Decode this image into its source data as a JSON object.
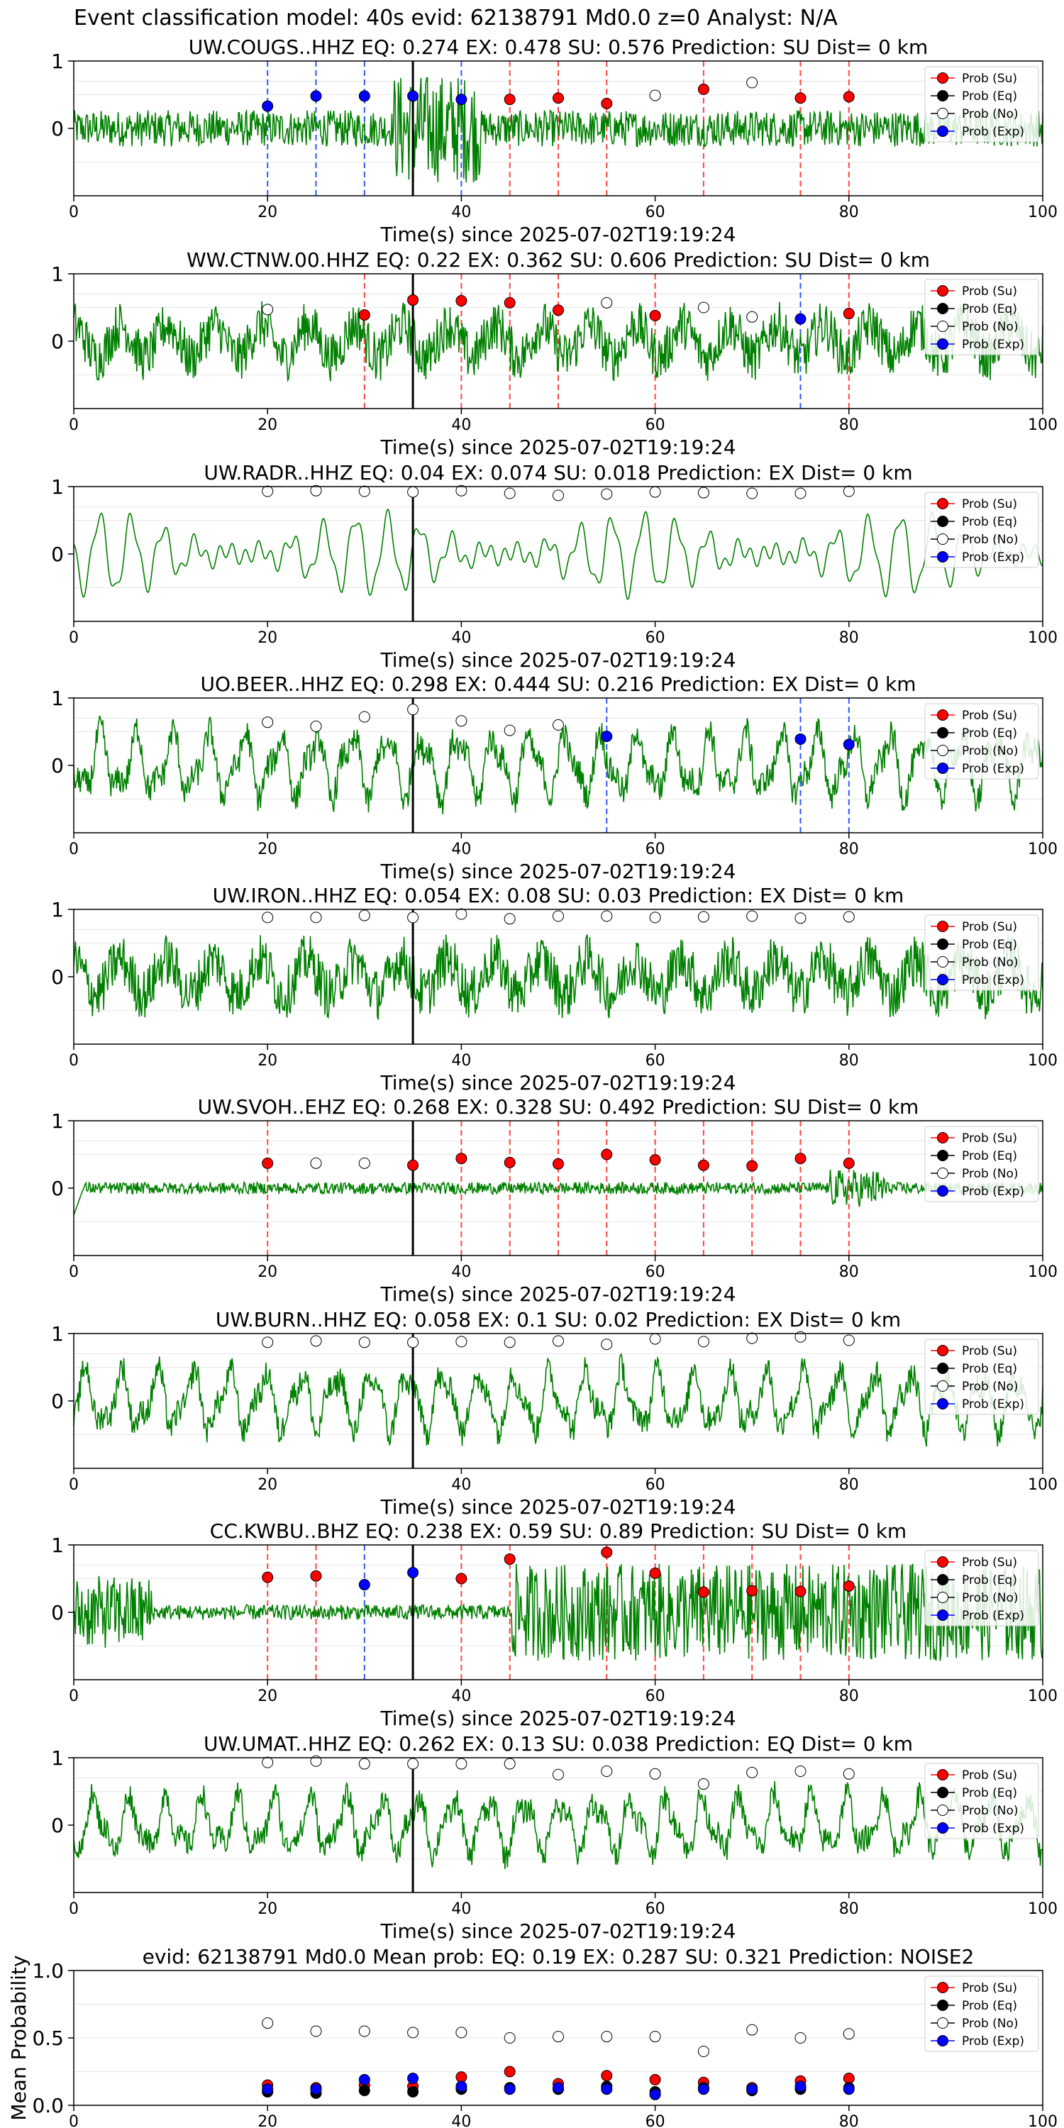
{
  "figure": {
    "suptitle": "Event classification model: 40s evid: 62138791 Md0.0 z=0 Analyst: N/A"
  },
  "legend_labels": [
    "Prob (Su)",
    "Prob (Eq)",
    "Prob (No)",
    "Prob (Exp)"
  ],
  "colors": {
    "trace": "#008000",
    "su": "#ff0000",
    "eq": "#000000",
    "no": "#ffffff",
    "exp": "#0000ff",
    "su_line": "#ff4444",
    "exp_line": "#3355ff",
    "pick_line": "#000000"
  },
  "xlabel": "Time(s) since 2025-07-02T19:19:24",
  "x_ticks": [
    "0",
    "20",
    "40",
    "60",
    "80",
    "100"
  ],
  "chart_data": [
    {
      "type": "line",
      "title": "UW.COUGS..HHZ   EQ: 0.274  EX: 0.478  SU: 0.576   Prediction: SU    Dist= 0 km",
      "xlim": [
        0,
        100
      ],
      "ylim": [
        -1,
        1
      ],
      "y_ticks": [
        "1",
        "0"
      ],
      "p_pick": 35,
      "noise_style": "high",
      "waveform_amplitude": 0.9,
      "window_times": [
        20,
        25,
        30,
        35,
        40,
        45,
        50,
        55,
        60,
        65,
        70,
        75,
        80
      ],
      "window_class": [
        "exp",
        "exp",
        "exp",
        "exp",
        "exp",
        "su",
        "su",
        "su",
        "no",
        "su",
        "no",
        "su",
        "su"
      ],
      "window_prob": [
        0.33,
        0.48,
        0.48,
        0.48,
        0.43,
        0.43,
        0.45,
        0.37,
        0.49,
        0.58,
        0.68,
        0.45,
        0.47
      ]
    },
    {
      "type": "line",
      "title": "WW.CTNW.00.HHZ   EQ: 0.22  EX: 0.362  SU: 0.606   Prediction: SU    Dist= 0 km",
      "xlim": [
        0,
        100
      ],
      "ylim": [
        -1,
        1
      ],
      "y_ticks": [
        "1",
        "0"
      ],
      "p_pick": 35,
      "noise_style": "mixed",
      "waveform_amplitude": 0.8,
      "window_times": [
        20,
        30,
        35,
        40,
        45,
        50,
        55,
        60,
        65,
        70,
        75,
        80
      ],
      "window_class": [
        "no",
        "su",
        "su",
        "su",
        "su",
        "su",
        "no",
        "su",
        "no",
        "no",
        "exp",
        "su"
      ],
      "window_prob": [
        0.47,
        0.39,
        0.61,
        0.6,
        0.57,
        0.46,
        0.57,
        0.38,
        0.5,
        0.36,
        0.33,
        0.41
      ]
    },
    {
      "type": "line",
      "title": "UW.RADR..HHZ   EQ: 0.04  EX: 0.074  SU: 0.018   Prediction: EX    Dist= 0 km",
      "xlim": [
        0,
        100
      ],
      "ylim": [
        -1,
        1
      ],
      "y_ticks": [
        "1",
        "0"
      ],
      "p_pick": 35,
      "noise_style": "smooth",
      "waveform_amplitude": 0.8,
      "window_times": [
        20,
        25,
        30,
        35,
        40,
        45,
        50,
        55,
        60,
        65,
        70,
        75,
        80
      ],
      "window_class": [
        "no",
        "no",
        "no",
        "no",
        "no",
        "no",
        "no",
        "no",
        "no",
        "no",
        "no",
        "no",
        "no"
      ],
      "window_prob": [
        0.93,
        0.94,
        0.93,
        0.92,
        0.94,
        0.9,
        0.87,
        0.89,
        0.92,
        0.91,
        0.9,
        0.9,
        0.93
      ]
    },
    {
      "type": "line",
      "title": "UO.BEER..HHZ   EQ: 0.298  EX: 0.444  SU: 0.216   Prediction: EX    Dist= 0 km",
      "xlim": [
        0,
        100
      ],
      "ylim": [
        -1,
        1
      ],
      "y_ticks": [
        "1",
        "0"
      ],
      "p_pick": 35,
      "noise_style": "lowfreq",
      "waveform_amplitude": 0.85,
      "window_times": [
        20,
        25,
        30,
        35,
        40,
        45,
        50,
        55,
        75,
        80
      ],
      "window_class": [
        "no",
        "no",
        "no",
        "no",
        "no",
        "no",
        "no",
        "exp",
        "exp",
        "exp"
      ],
      "window_prob": [
        0.64,
        0.58,
        0.72,
        0.83,
        0.66,
        0.52,
        0.6,
        0.43,
        0.39,
        0.31
      ]
    },
    {
      "type": "line",
      "title": "UW.IRON..HHZ   EQ: 0.054  EX: 0.08  SU: 0.03   Prediction: EX    Dist= 0 km",
      "xlim": [
        0,
        100
      ],
      "ylim": [
        -1,
        1
      ],
      "y_ticks": [
        "1",
        "0"
      ],
      "p_pick": 35,
      "noise_style": "mixed",
      "waveform_amplitude": 0.85,
      "window_times": [
        20,
        25,
        30,
        35,
        40,
        45,
        50,
        55,
        60,
        65,
        70,
        75,
        80
      ],
      "window_class": [
        "no",
        "no",
        "no",
        "no",
        "no",
        "no",
        "no",
        "no",
        "no",
        "no",
        "no",
        "no",
        "no"
      ],
      "window_prob": [
        0.88,
        0.88,
        0.91,
        0.88,
        0.93,
        0.86,
        0.9,
        0.9,
        0.88,
        0.89,
        0.9,
        0.87,
        0.89
      ]
    },
    {
      "type": "line",
      "title": "UW.SVOH..EHZ   EQ: 0.268  EX: 0.328  SU: 0.492   Prediction: SU    Dist= 0 km",
      "xlim": [
        0,
        100
      ],
      "ylim": [
        -1,
        1
      ],
      "y_ticks": [
        "1",
        "0"
      ],
      "p_pick": 35,
      "noise_style": "quiet",
      "waveform_amplitude": 0.5,
      "window_times": [
        20,
        25,
        30,
        35,
        40,
        45,
        50,
        55,
        60,
        65,
        70,
        75,
        80
      ],
      "window_class": [
        "su",
        "no",
        "no",
        "su",
        "su",
        "su",
        "su",
        "su",
        "su",
        "su",
        "su",
        "su",
        "su"
      ],
      "window_prob": [
        0.37,
        0.37,
        0.37,
        0.34,
        0.44,
        0.38,
        0.36,
        0.5,
        0.42,
        0.34,
        0.33,
        0.44,
        0.37
      ]
    },
    {
      "type": "line",
      "title": "UW.BURN..HHZ   EQ: 0.058  EX: 0.1  SU: 0.02   Prediction: EX    Dist= 0 km",
      "xlim": [
        0,
        100
      ],
      "ylim": [
        -1,
        1
      ],
      "y_ticks": [
        "1",
        "0"
      ],
      "p_pick": 35,
      "noise_style": "lowfreq",
      "waveform_amplitude": 0.8,
      "window_times": [
        20,
        25,
        30,
        35,
        40,
        45,
        50,
        55,
        60,
        65,
        70,
        75,
        80
      ],
      "window_class": [
        "no",
        "no",
        "no",
        "no",
        "no",
        "no",
        "no",
        "no",
        "no",
        "no",
        "no",
        "no",
        "no"
      ],
      "window_prob": [
        0.87,
        0.89,
        0.87,
        0.87,
        0.88,
        0.87,
        0.89,
        0.84,
        0.92,
        0.88,
        0.93,
        0.95,
        0.9
      ]
    },
    {
      "type": "line",
      "title": "CC.KWBU..BHZ   EQ: 0.238  EX: 0.59  SU: 0.89   Prediction: SU    Dist= 0 km",
      "xlim": [
        0,
        100
      ],
      "ylim": [
        -1,
        1
      ],
      "y_ticks": [
        "1",
        "0"
      ],
      "p_pick": 35,
      "noise_style": "burst",
      "waveform_amplitude": 0.9,
      "window_times": [
        20,
        25,
        30,
        35,
        40,
        45,
        55,
        60,
        65,
        70,
        75,
        80
      ],
      "window_class": [
        "su",
        "su",
        "exp",
        "exp",
        "su",
        "su",
        "su",
        "su",
        "su",
        "su",
        "su",
        "su"
      ],
      "window_prob": [
        0.52,
        0.54,
        0.41,
        0.59,
        0.5,
        0.79,
        0.89,
        0.58,
        0.3,
        0.32,
        0.31,
        0.39
      ]
    },
    {
      "type": "line",
      "title": "UW.UMAT..HHZ   EQ: 0.262  EX: 0.13  SU: 0.038   Prediction: EQ    Dist= 0 km",
      "xlim": [
        0,
        100
      ],
      "ylim": [
        -1,
        1
      ],
      "y_ticks": [
        "1",
        "0"
      ],
      "p_pick": 35,
      "noise_style": "lowfreq",
      "waveform_amplitude": 0.75,
      "window_times": [
        20,
        25,
        30,
        35,
        40,
        45,
        50,
        55,
        60,
        65,
        70,
        75,
        80
      ],
      "window_class": [
        "no",
        "no",
        "no",
        "no",
        "no",
        "no",
        "no",
        "no",
        "no",
        "no",
        "no",
        "no",
        "no"
      ],
      "window_prob": [
        0.93,
        0.95,
        0.91,
        0.91,
        0.91,
        0.91,
        0.75,
        0.8,
        0.76,
        0.61,
        0.78,
        0.8,
        0.76
      ]
    },
    {
      "type": "scatter",
      "title": "evid: 62138791  Md0.0   Mean prob:    EQ: 0.19  EX: 0.287  SU: 0.321   Prediction: NOISE2",
      "ylabel": "Mean Probability",
      "xlim": [
        0,
        100
      ],
      "ylim": [
        0,
        1
      ],
      "y_ticks": [
        "1.0",
        "0.5",
        "0.0"
      ],
      "x": [
        20,
        25,
        30,
        35,
        40,
        45,
        50,
        55,
        60,
        65,
        70,
        75,
        80
      ],
      "series": [
        {
          "name": "Prob (Su)",
          "key": "su",
          "values": [
            0.15,
            0.13,
            0.15,
            0.14,
            0.21,
            0.25,
            0.16,
            0.22,
            0.19,
            0.17,
            0.13,
            0.18,
            0.2
          ]
        },
        {
          "name": "Prob (Eq)",
          "key": "eq",
          "values": [
            0.1,
            0.09,
            0.11,
            0.1,
            0.12,
            0.13,
            0.12,
            0.14,
            0.1,
            0.13,
            0.11,
            0.12,
            0.13
          ]
        },
        {
          "name": "Prob (No)",
          "key": "no",
          "values": [
            0.61,
            0.55,
            0.55,
            0.54,
            0.54,
            0.5,
            0.51,
            0.51,
            0.51,
            0.4,
            0.56,
            0.5,
            0.53
          ]
        },
        {
          "name": "Prob (Exp)",
          "key": "exp",
          "values": [
            0.12,
            0.12,
            0.19,
            0.2,
            0.14,
            0.12,
            0.13,
            0.12,
            0.08,
            0.12,
            0.12,
            0.14,
            0.12
          ]
        }
      ]
    }
  ]
}
